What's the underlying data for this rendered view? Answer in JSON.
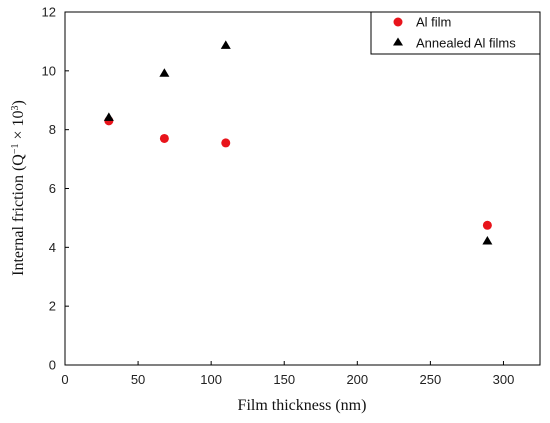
{
  "chart_data": {
    "type": "scatter",
    "xlabel": "Film thickness (nm)",
    "ylabel_main": "Internal friction (Q",
    "ylabel_exp1": "−1",
    "ylabel_mid": " × 10",
    "ylabel_exp2": "3",
    "ylabel_end": ")",
    "xlim": [
      0,
      325
    ],
    "ylim": [
      0,
      12
    ],
    "xticks": [
      0,
      50,
      100,
      150,
      200,
      250,
      300
    ],
    "yticks": [
      0,
      2,
      4,
      6,
      8,
      10,
      12
    ],
    "grid": false,
    "legend_position": "top-right",
    "series": [
      {
        "name": "Al film",
        "marker": "circle",
        "color": "#e8141b",
        "x": [
          30,
          68,
          110,
          289
        ],
        "y": [
          8.3,
          7.7,
          7.55,
          4.75
        ]
      },
      {
        "name": "Annealed Al films",
        "marker": "triangle",
        "color": "#000000",
        "x": [
          30,
          68,
          110,
          289
        ],
        "y": [
          8.4,
          9.9,
          10.85,
          4.2
        ]
      }
    ]
  }
}
